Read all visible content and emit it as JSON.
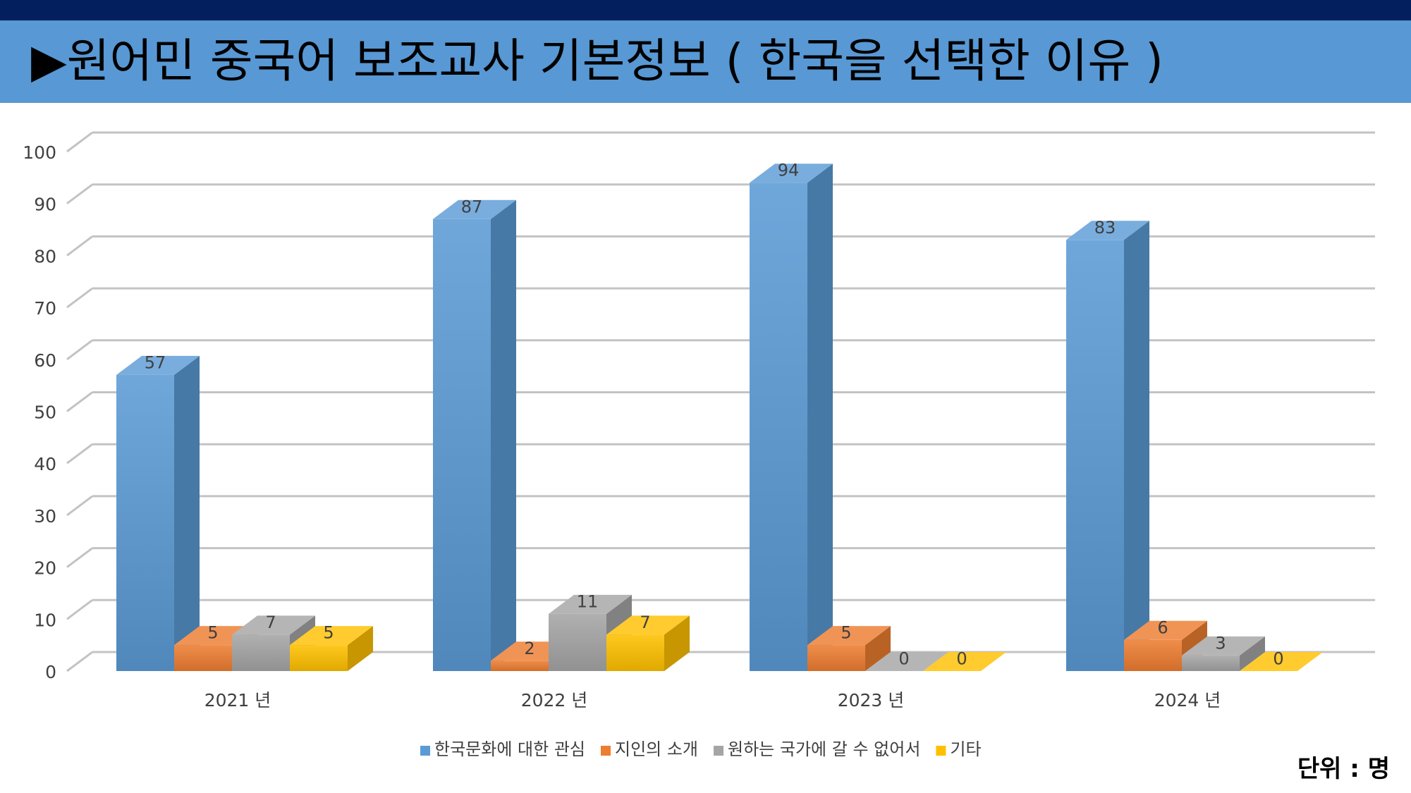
{
  "header": {
    "title": "▶원어민 중국어 보조교사 기본정보 ( 한국을 선택한 이유 )"
  },
  "unit_label": "단위 : 명",
  "chart_data": {
    "type": "bar",
    "title": "",
    "xlabel": "",
    "ylabel": "",
    "ylim": [
      0,
      100
    ],
    "ytick_step": 10,
    "grid": true,
    "legend_position": "bottom",
    "categories": [
      "2021 년",
      "2022 년",
      "2023 년",
      "2024 년"
    ],
    "series": [
      {
        "name": "한국문화에 대한 관심",
        "color": "#5b9bd5",
        "values": [
          57,
          87,
          94,
          83
        ]
      },
      {
        "name": "지인의 소개",
        "color": "#ed7d31",
        "values": [
          5,
          2,
          5,
          6
        ]
      },
      {
        "name": "원하는 국가에 갈 수 없어서",
        "color": "#a5a5a5",
        "values": [
          7,
          11,
          0,
          3
        ]
      },
      {
        "name": "기타",
        "color": "#ffc000",
        "values": [
          5,
          7,
          0,
          0
        ]
      }
    ]
  }
}
